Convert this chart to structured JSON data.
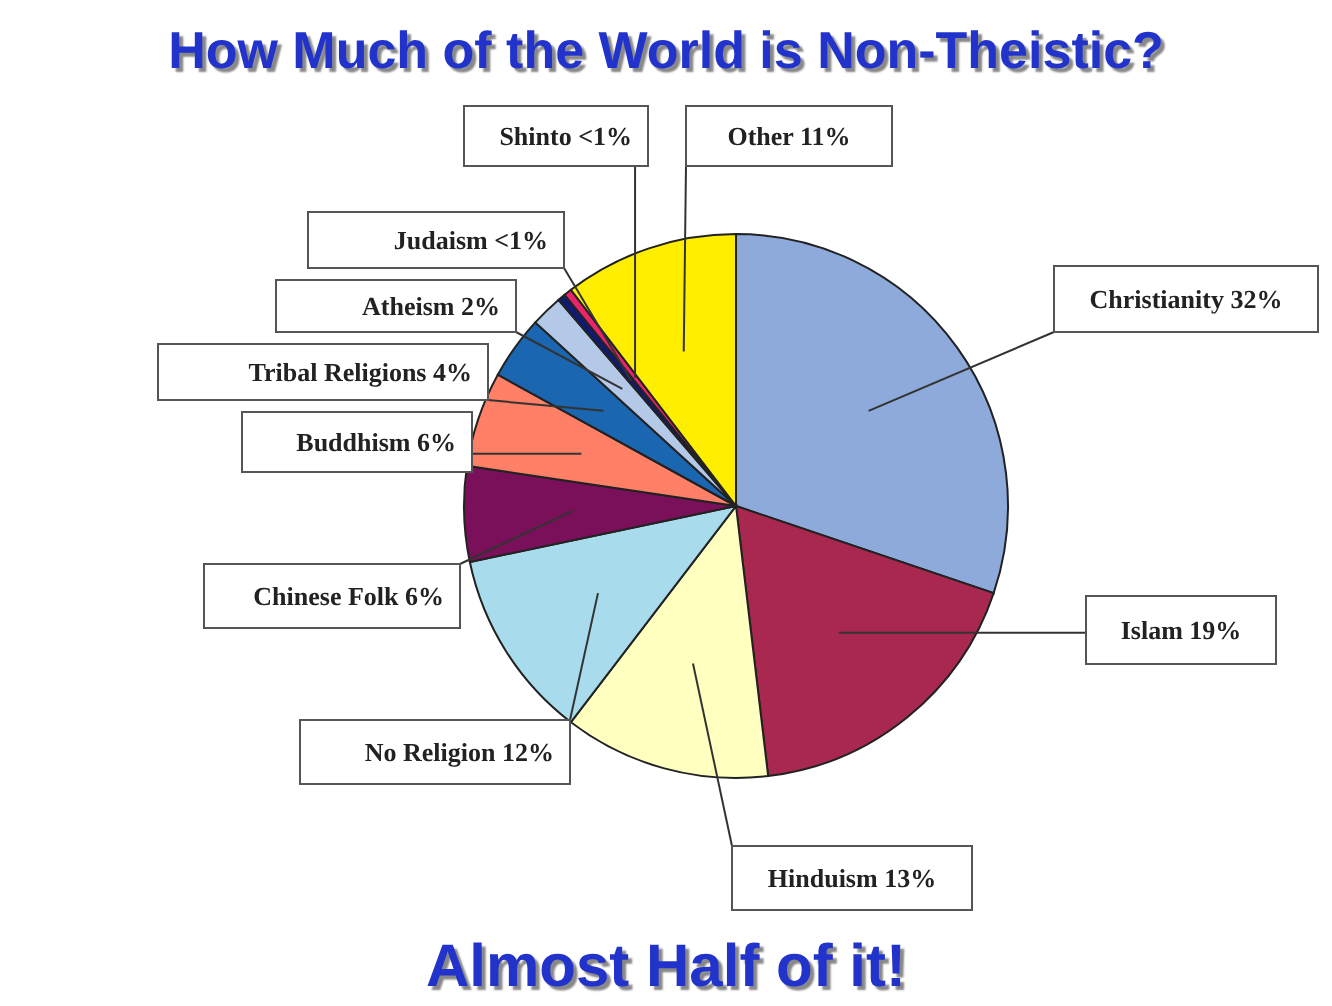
{
  "chart_data": {
    "type": "pie",
    "title": "How Much of the World is Non-Theistic?",
    "categories": [
      "Christianity",
      "Islam",
      "Hinduism",
      "No Religion",
      "Chinese Folk",
      "Buddhism",
      "Tribal Religions",
      "Atheism",
      "Judaism",
      "Shinto",
      "Other"
    ],
    "values": [
      32,
      19,
      13,
      12,
      6,
      6,
      4,
      2,
      0.5,
      0.5,
      11
    ],
    "value_labels": [
      "32%",
      "19%",
      "13%",
      "12%",
      "6%",
      "6%",
      "4%",
      "2%",
      "<1%",
      "<1%",
      "11%"
    ],
    "colors": [
      "#8eaadb",
      "#a8284f",
      "#ffffc0",
      "#a8dcec",
      "#7a0f5a",
      "#ff8066",
      "#1a66b0",
      "#b4c8e8",
      "#101a70",
      "#e8246a",
      "#ffee00"
    ],
    "annotations": [
      "Almost Half of it!"
    ]
  }
}
